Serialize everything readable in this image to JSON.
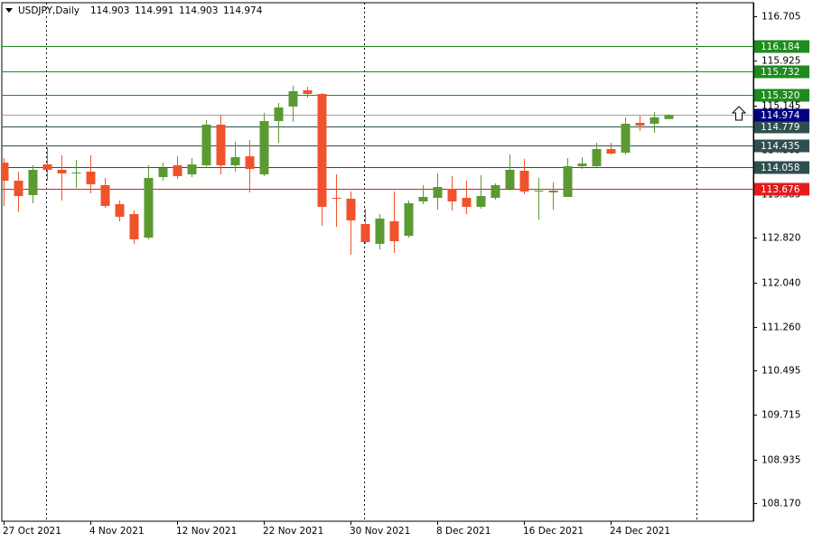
{
  "chart_data": {
    "type": "candlestick",
    "title": "USDJPY,Daily",
    "categories": [
      "27 Oct 2021",
      null,
      null,
      null,
      null,
      null,
      "4 Nov 2021",
      null,
      null,
      null,
      null,
      null,
      "12 Nov 2021",
      null,
      null,
      null,
      null,
      null,
      "22 Nov 2021",
      null,
      null,
      null,
      null,
      null,
      "30 Nov 2021",
      null,
      null,
      null,
      null,
      null,
      "8 Dec 2021",
      null,
      null,
      null,
      null,
      null,
      "16 Dec 2021",
      null,
      null,
      null,
      null,
      null,
      "24 Dec 2021",
      null,
      null,
      null,
      null
    ],
    "open": [
      114.139,
      113.823,
      113.57,
      114.108,
      114.013,
      113.95,
      113.981,
      113.744,
      113.411,
      113.237,
      112.825,
      113.886,
      114.092,
      113.934,
      114.092,
      114.805,
      114.092,
      114.251,
      113.934,
      114.868,
      115.122,
      115.407,
      115.343,
      113.522,
      113.506,
      113.063,
      112.715,
      113.11,
      112.857,
      113.459,
      113.522,
      113.681,
      113.522,
      113.364,
      113.522,
      113.681,
      113.997,
      113.633,
      113.617,
      113.538,
      114.076,
      114.076,
      114.377,
      114.314,
      114.837,
      114.821,
      114.903
    ],
    "high": [
      114.218,
      113.981,
      114.092,
      114.409,
      114.266,
      114.187,
      114.266,
      113.871,
      113.475,
      113.3,
      114.092,
      114.14,
      114.251,
      114.219,
      114.884,
      114.979,
      114.504,
      114.536,
      115.011,
      115.185,
      115.486,
      115.47,
      115.359,
      113.934,
      113.633,
      113.332,
      113.237,
      113.633,
      113.475,
      113.744,
      113.95,
      113.902,
      113.823,
      113.918,
      113.776,
      114.282,
      114.203,
      113.871,
      113.792,
      114.219,
      114.235,
      114.488,
      114.488,
      114.932,
      114.963,
      115.027,
      114.991
    ],
    "low": [
      113.379,
      113.269,
      113.427,
      113.823,
      113.475,
      113.696,
      113.601,
      113.348,
      113.11,
      112.715,
      112.794,
      113.823,
      113.855,
      113.886,
      114.045,
      113.934,
      113.981,
      113.617,
      113.902,
      114.488,
      114.852,
      115.28,
      113.031,
      113.016,
      112.525,
      112.715,
      112.62,
      112.556,
      112.825,
      113.411,
      113.316,
      113.3,
      113.237,
      113.332,
      113.491,
      113.649,
      113.586,
      113.142,
      113.316,
      113.538,
      114.029,
      114.06,
      114.282,
      114.282,
      114.694,
      114.662,
      114.903
    ],
    "close": [
      113.822,
      113.554,
      114.013,
      114.013,
      113.95,
      113.966,
      113.76,
      113.38,
      113.19,
      112.794,
      113.871,
      114.045,
      113.902,
      114.108,
      114.805,
      114.092,
      114.235,
      114.029,
      114.868,
      115.106,
      115.391,
      115.343,
      113.364,
      113.506,
      113.126,
      112.746,
      113.158,
      112.762,
      113.427,
      113.538,
      113.712,
      113.459,
      113.364,
      113.554,
      113.744,
      114.013,
      113.633,
      113.649,
      113.649,
      114.076,
      114.124,
      114.377,
      114.298,
      114.821,
      114.789,
      114.932,
      114.974
    ],
    "up_color": "#5b9a32",
    "down_color": "#f0532b",
    "ylim": [
      107.852,
      116.943
    ],
    "yticks": [
      116.705,
      115.925,
      115.145,
      114.365,
      113.585,
      {
        "value": 112.82,
        "label": "112.820"
      },
      {
        "value": 112.04,
        "label": "112.040"
      },
      {
        "value": 111.26,
        "label": "111.260"
      },
      110.495,
      109.715,
      108.935,
      {
        "value": 108.17,
        "label": "108.170"
      }
    ],
    "levels": {
      "prices": [
        116.184,
        115.732,
        {
          "value": 115.32,
          "label": "115.320"
        },
        114.779,
        114.435,
        114.058,
        113.676
      ],
      "colors": [
        "#1f8a1f",
        "#1f8a1f",
        "#1f8a1f",
        "#2f4f4f",
        "#2f4f4f",
        "#2f4f4f",
        "#e31b1b"
      ]
    },
    "bid_color": "#000080"
  }
}
